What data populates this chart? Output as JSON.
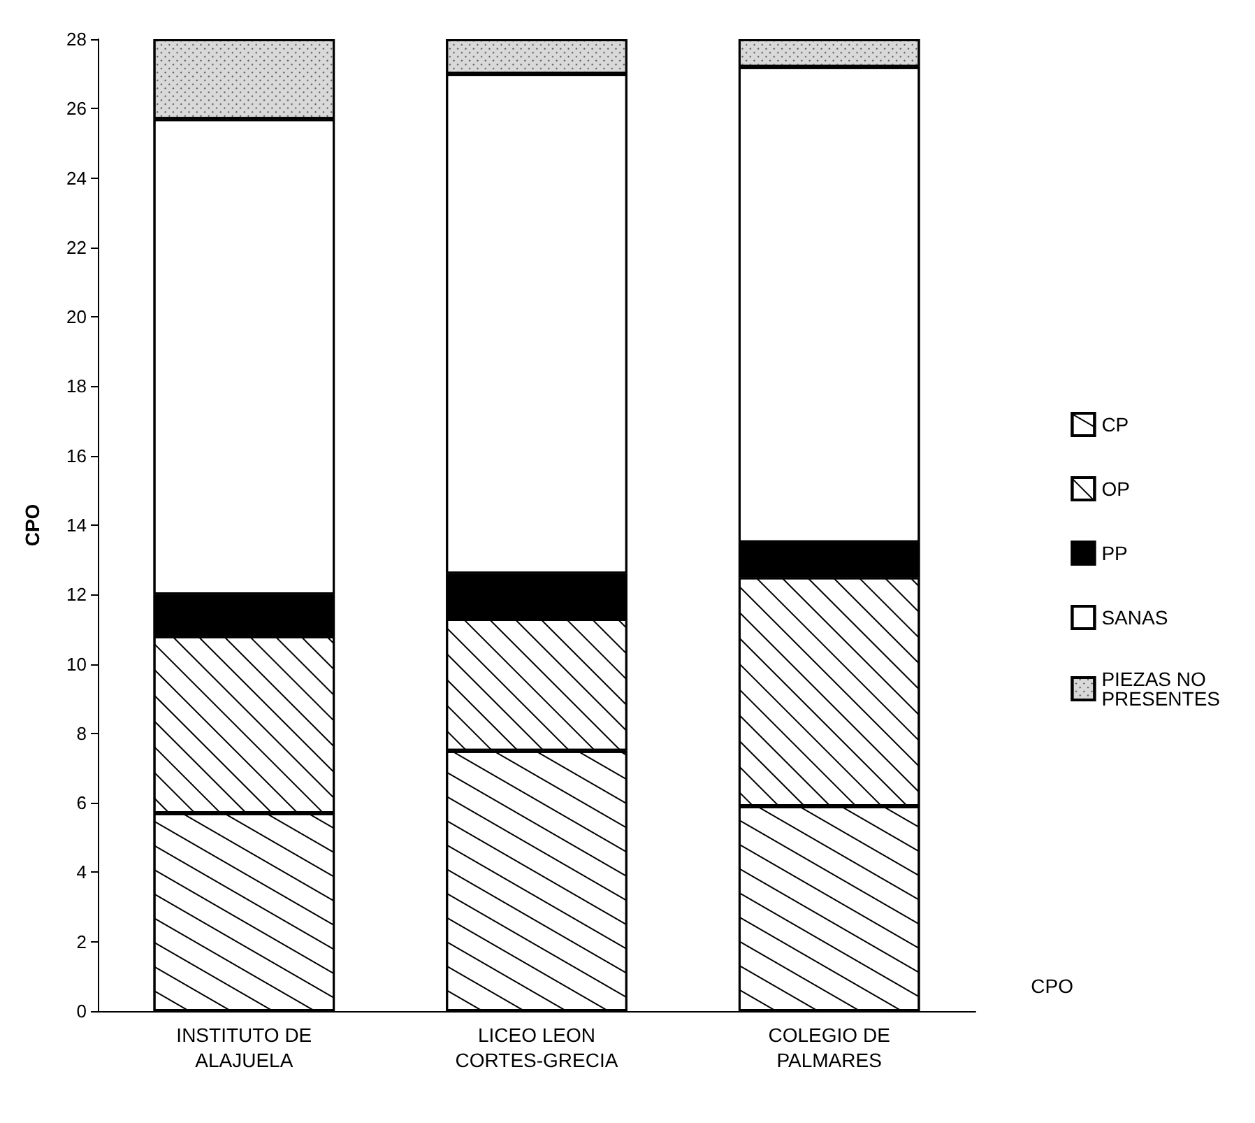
{
  "chart_data": {
    "type": "bar",
    "stacked": true,
    "ylabel": "CPO",
    "categories": [
      "INSTITUTO DE\nALAJUELA",
      "LICEO LEON\nCORTES-GRECIA",
      "COLEGIO DE\nPALMARES"
    ],
    "series": [
      {
        "name": "CP",
        "color": "#ffffff",
        "values": [
          5.7,
          7.5,
          5.9
        ]
      },
      {
        "name": "OP",
        "color": "#ffffff",
        "values": [
          5.1,
          3.8,
          6.6
        ]
      },
      {
        "name": "PP",
        "color": "#000000",
        "values": [
          1.2,
          1.3,
          1.0
        ]
      },
      {
        "name": "SANAS",
        "color": "#ffffff",
        "values": [
          13.7,
          14.4,
          13.7
        ]
      },
      {
        "name": "PIEZAS NO PRESENTES",
        "color": "#d9d9d9",
        "values": [
          2.3,
          1.0,
          0.8
        ]
      }
    ],
    "ylim": [
      0,
      28
    ],
    "yticks": [
      0,
      2,
      4,
      6,
      8,
      10,
      12,
      14,
      16,
      18,
      20,
      22,
      24,
      26,
      28
    ],
    "grid": false,
    "legend": "right",
    "annotations": [
      "CPO"
    ]
  }
}
